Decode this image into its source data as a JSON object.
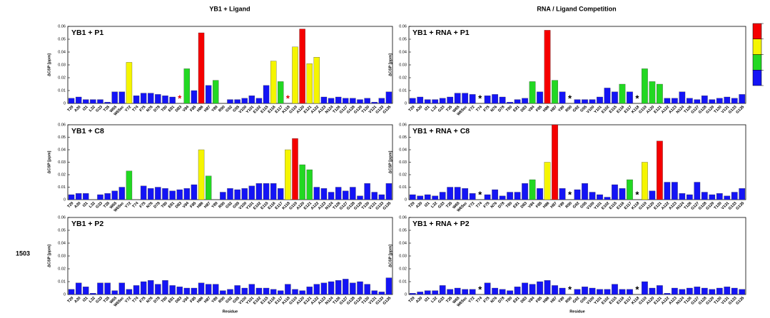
{
  "chart_data": {
    "type": "bar",
    "column_titles": [
      "YB1 + Ligand",
      "RNA / Ligand Competition"
    ],
    "side_label": "1503",
    "ylabel": "ΔCSP [ppm]",
    "xlabel": "Residue",
    "ylim": [
      0,
      0.06
    ],
    "yticks": [
      0,
      0.01,
      0.02,
      0.03,
      0.04,
      0.05,
      0.06
    ],
    "color_bins": [
      0,
      0.015,
      0.03,
      0.045,
      0.06
    ],
    "bin_colors": [
      "#1414f5",
      "#22d822",
      "#f5f500",
      "#f50000"
    ],
    "categories": [
      "T29",
      "A30",
      "I31",
      "L32",
      "G33",
      "T35",
      "W65",
      "W65sc",
      "Y72",
      "T74",
      "F75",
      "N76",
      "D78",
      "T80",
      "E81",
      "D83",
      "V84",
      "F85",
      "H86",
      "H87",
      "Y89",
      "R90",
      "G92",
      "G95",
      "V100",
      "Y101",
      "E102",
      "E115",
      "E116",
      "E117",
      "K118",
      "G119",
      "A120",
      "E121",
      "A122",
      "A123",
      "N124",
      "T126",
      "G127",
      "G128",
      "G129",
      "T130",
      "V131",
      "G133",
      "G135"
    ],
    "charts": [
      {
        "title": "YB1 + P1",
        "values": [
          0.004,
          0.005,
          0.003,
          0.003,
          0.003,
          0.001,
          0.009,
          0.009,
          0.032,
          0.006,
          0.008,
          0.008,
          0.007,
          0.006,
          0.005,
          null,
          0.027,
          0.01,
          0.055,
          0.014,
          0.018,
          null,
          0.003,
          0.003,
          0.004,
          0.006,
          0.004,
          0.014,
          0.033,
          0.017,
          null,
          0.044,
          0.058,
          0.031,
          0.036,
          0.005,
          0.004,
          0.005,
          0.004,
          0.004,
          0.003,
          0.004,
          0.001,
          0.004,
          0.009
        ],
        "markers": [
          {
            "category": "D83",
            "label": "*",
            "color": "#e00000"
          },
          {
            "category": "K118",
            "label": "*",
            "color": "#e00000"
          }
        ]
      },
      {
        "title": "YB1 + RNA + P1",
        "values": [
          0.004,
          0.005,
          0.003,
          0.003,
          0.004,
          0.005,
          0.008,
          0.008,
          0.007,
          null,
          0.006,
          0.007,
          0.005,
          0.001,
          0.003,
          0.004,
          0.017,
          0.009,
          0.057,
          0.018,
          0.009,
          null,
          0.003,
          0.003,
          0.003,
          0.005,
          0.012,
          0.009,
          0.015,
          0.009,
          null,
          0.027,
          0.017,
          0.015,
          0.004,
          0.004,
          0.009,
          0.004,
          0.003,
          0.006,
          0.003,
          0.004,
          0.005,
          0.004,
          0.007
        ],
        "markers": [
          {
            "category": "T74",
            "label": "*",
            "color": "#000000"
          },
          {
            "category": "R90",
            "label": "*",
            "color": "#000000"
          },
          {
            "category": "K118",
            "label": "*",
            "color": "#000000"
          }
        ]
      },
      {
        "title": "YB1 + C8",
        "values": [
          0.004,
          0.005,
          0.005,
          null,
          0.004,
          0.005,
          0.007,
          0.01,
          0.023,
          null,
          0.011,
          0.009,
          0.01,
          0.009,
          0.007,
          0.008,
          0.009,
          0.012,
          0.04,
          0.019,
          null,
          0.006,
          0.009,
          0.008,
          0.009,
          0.011,
          0.013,
          0.013,
          0.013,
          0.009,
          0.04,
          0.049,
          0.028,
          0.024,
          0.01,
          0.009,
          0.006,
          0.01,
          0.007,
          0.01,
          0.003,
          0.013,
          0.006,
          0.004,
          0.013
        ],
        "markers": []
      },
      {
        "title": "YB1 + RNA + C8",
        "values": [
          0.004,
          0.003,
          0.004,
          0.003,
          0.006,
          0.01,
          0.01,
          0.009,
          0.005,
          null,
          0.004,
          0.008,
          0.003,
          0.006,
          0.006,
          0.013,
          0.016,
          0.009,
          0.03,
          0.06,
          0.009,
          null,
          0.008,
          0.013,
          0.006,
          0.004,
          0.002,
          0.012,
          0.009,
          0.016,
          null,
          0.03,
          0.007,
          0.047,
          0.014,
          0.014,
          0.005,
          0.004,
          0.014,
          0.006,
          0.004,
          0.005,
          0.003,
          0.006,
          0.009
        ],
        "markers": [
          {
            "category": "T74",
            "label": "*",
            "color": "#000000"
          },
          {
            "category": "R90",
            "label": "*",
            "color": "#000000"
          },
          {
            "category": "K118",
            "label": "*",
            "color": "#000000"
          }
        ]
      },
      {
        "title": "YB1 + P2",
        "values": [
          0.004,
          0.009,
          0.006,
          0.001,
          0.009,
          0.009,
          0.003,
          0.009,
          0.004,
          0.007,
          0.01,
          0.011,
          0.008,
          0.011,
          0.007,
          0.006,
          0.005,
          0.005,
          0.009,
          0.008,
          0.008,
          0.003,
          0.004,
          0.007,
          0.005,
          0.008,
          0.005,
          0.005,
          0.004,
          0.003,
          0.008,
          0.004,
          0.003,
          0.006,
          0.008,
          0.009,
          0.01,
          0.011,
          0.012,
          0.009,
          0.01,
          0.008,
          0.003,
          0.002,
          0.013
        ],
        "markers": []
      },
      {
        "title": "YB1 + RNA + P2",
        "values": [
          0.001,
          0.002,
          0.003,
          0.003,
          0.007,
          0.004,
          0.005,
          0.004,
          0.004,
          null,
          0.009,
          0.005,
          0.004,
          0.003,
          0.006,
          0.009,
          0.008,
          0.01,
          0.011,
          0.007,
          0.005,
          null,
          0.004,
          0.006,
          0.005,
          0.004,
          0.004,
          0.008,
          0.004,
          0.004,
          null,
          0.01,
          0.005,
          0.007,
          0.001,
          0.005,
          0.004,
          0.005,
          0.006,
          0.005,
          0.004,
          0.005,
          0.006,
          0.005,
          0.004
        ],
        "markers": [
          {
            "category": "T74",
            "label": "*",
            "color": "#000000"
          },
          {
            "category": "R90",
            "label": "*",
            "color": "#000000"
          },
          {
            "category": "K118",
            "label": "*",
            "color": "#000000"
          }
        ]
      }
    ]
  }
}
